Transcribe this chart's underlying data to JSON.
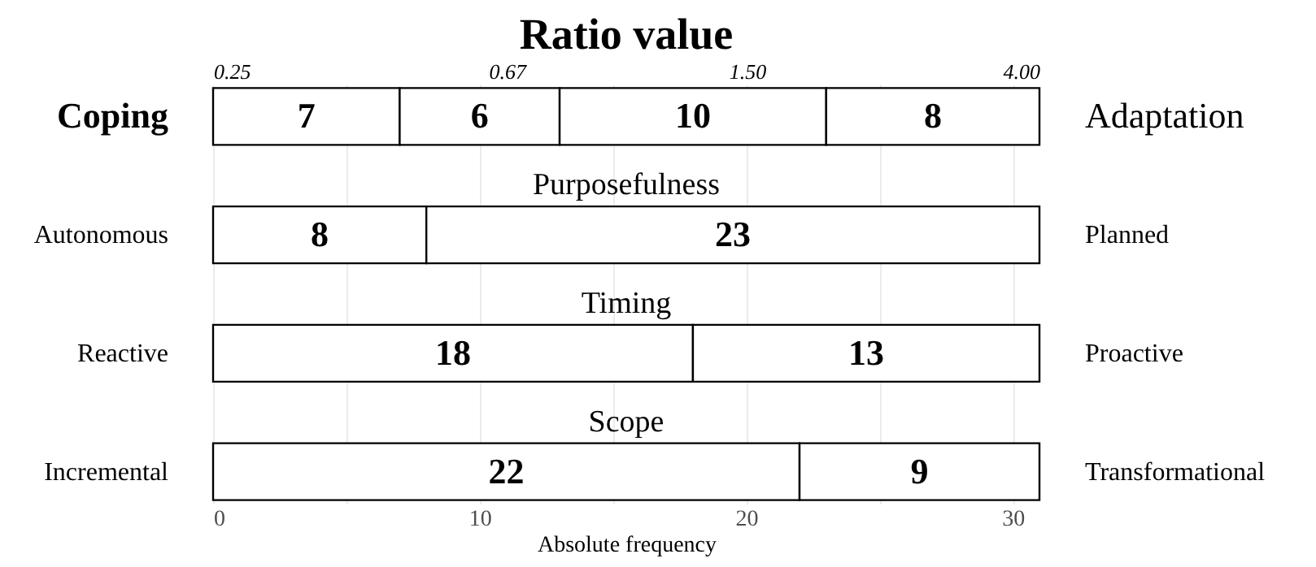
{
  "chart_data": {
    "type": "bar",
    "orientation": "horizontal",
    "stacked": true,
    "title": "Ratio value",
    "xlabel": "Absolute frequency",
    "categories": [
      "Coping",
      "Autonomous",
      "Reactive",
      "Incremental"
    ],
    "y2_categories": [
      "Adaptation",
      "Planned",
      "Proactive",
      "Transformational"
    ],
    "series": [
      {
        "color": "#ffffff",
        "values": [
          7,
          8,
          18,
          22
        ]
      },
      {
        "color": "#ffffff",
        "values": [
          6,
          23,
          13,
          9
        ]
      },
      {
        "color": "#ffffff",
        "values": [
          10,
          null,
          null,
          null
        ]
      },
      {
        "color": "#ffffff",
        "values": [
          8,
          null,
          null,
          null
        ]
      }
    ],
    "xlim": [
      0,
      31
    ],
    "xticks": [
      0,
      {
        "value": 5,
        "label": null
      },
      10,
      {
        "value": 15,
        "label": null
      },
      20,
      {
        "value": 25,
        "label": null
      },
      30
    ],
    "x2lim": [
      0.25,
      4
    ],
    "x2ticks": [
      {
        "value": 0.25,
        "label": "0.25"
      },
      {
        "value": 0.67,
        "label": "0.67"
      },
      {
        "value": 1.5,
        "label": "1.50"
      },
      {
        "value": 4,
        "label": "4.00"
      }
    ],
    "log": "x2",
    "annotations": [
      "Purposefulness",
      "Timing",
      "Scope"
    ],
    "data_labels": true,
    "grid": true,
    "legend": false
  }
}
